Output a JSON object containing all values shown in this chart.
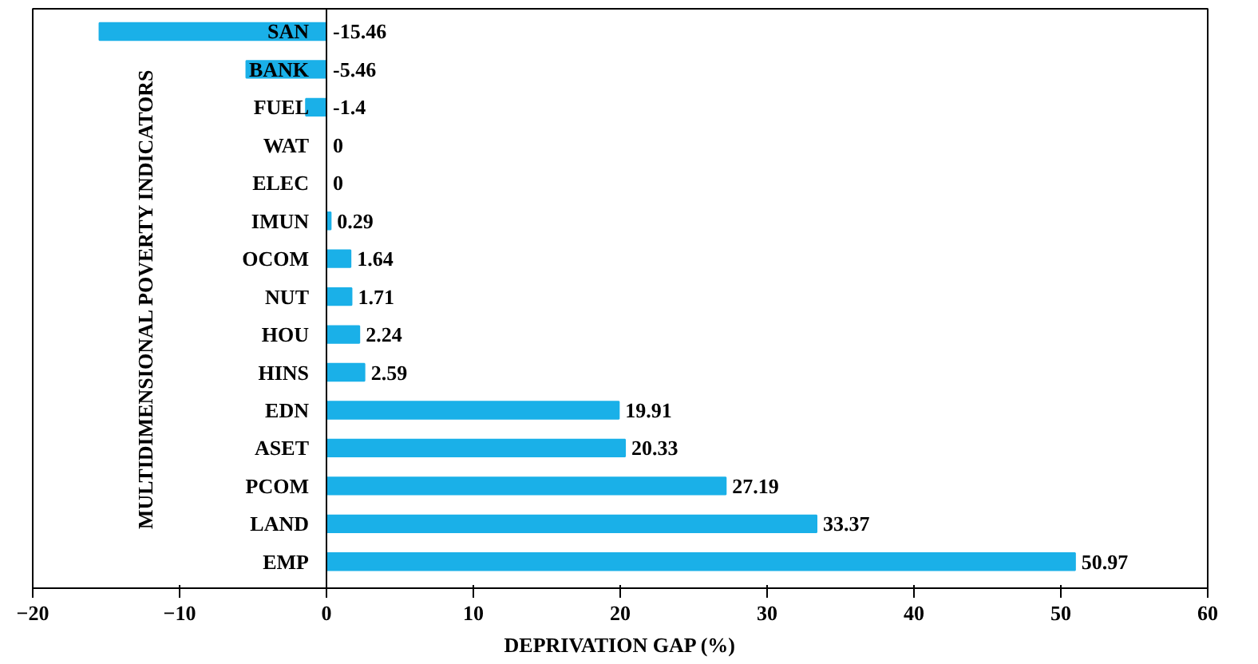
{
  "chart_data": {
    "type": "bar",
    "orientation": "horizontal",
    "xlabel": "DEPRIVATION GAP (%)",
    "ylabel": "MULTIDIMENSIONAL POVERTY INDICATORS",
    "categories": [
      "SAN",
      "BANK",
      "FUEL",
      "WAT",
      "ELEC",
      "IMUN",
      "OCOM",
      "NUT",
      "HOU",
      "HINS",
      "EDN",
      "ASET",
      "PCOM",
      "LAND",
      "EMP"
    ],
    "values": [
      -15.46,
      -5.46,
      -1.4,
      0,
      0,
      0.29,
      1.64,
      1.71,
      2.24,
      2.59,
      19.91,
      20.33,
      27.19,
      33.37,
      50.97
    ],
    "color": "#1ab0e8",
    "data_labels": true,
    "grid": false,
    "xlim": [
      -20,
      60
    ],
    "xticks": [
      -20,
      -10,
      0,
      10,
      20,
      30,
      40,
      50,
      60
    ]
  }
}
